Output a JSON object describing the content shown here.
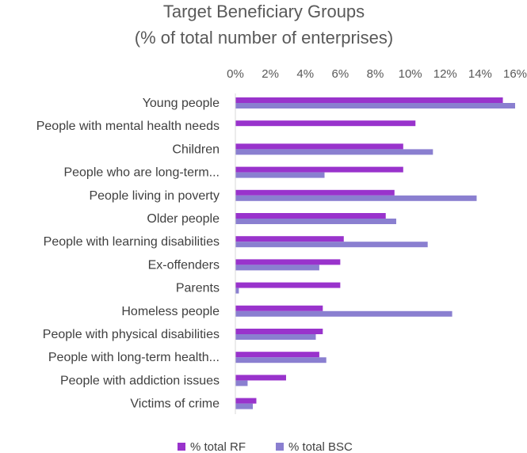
{
  "chart_data": {
    "type": "bar",
    "orientation": "horizontal",
    "title": "Target Beneficiary Groups",
    "subtitle": "(% of total number of enterprises)",
    "categories": [
      "Young people",
      "People with mental health needs",
      "Children",
      "People who are long-term...",
      "People living in poverty",
      "Older people",
      "People with learning disabilities",
      "Ex-offenders",
      "Parents",
      "Homeless people",
      "People with physical disabilities",
      "People with long-term health...",
      "People with addiction issues",
      "Victims of crime"
    ],
    "series": [
      {
        "name": "% total RF",
        "color": "#9933cc",
        "values": [
          15.3,
          10.3,
          9.6,
          9.6,
          9.1,
          8.6,
          6.2,
          6.0,
          6.0,
          5.0,
          5.0,
          4.8,
          2.9,
          1.2
        ]
      },
      {
        "name": "% total BSC",
        "color": "#8a7fd0",
        "values": [
          16.0,
          0,
          11.3,
          5.1,
          13.8,
          9.2,
          11.0,
          4.8,
          0.2,
          12.4,
          4.6,
          5.2,
          0.7,
          1.0
        ]
      }
    ],
    "xlim": [
      0,
      16
    ],
    "x_ticks": [
      "0%",
      "2%",
      "4%",
      "6%",
      "8%",
      "10%",
      "12%",
      "14%",
      "16%"
    ],
    "axis_position": "top",
    "grid": false,
    "legend_position": "bottom"
  }
}
